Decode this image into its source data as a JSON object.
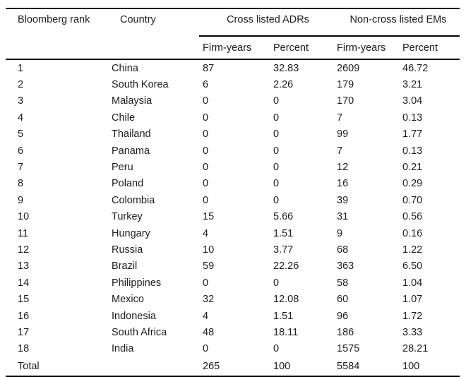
{
  "table": {
    "headers": {
      "rank": "Bloomberg rank",
      "country": "Country",
      "adr_group": "Cross listed ADRs",
      "em_group": "Non-cross listed EMs",
      "adr_firm_years": "Firm-years",
      "adr_percent": "Percent",
      "em_firm_years": "Firm-years",
      "em_percent": "Percent"
    },
    "rows": [
      [
        "1",
        "China",
        "87",
        "32.83",
        "2609",
        "46.72"
      ],
      [
        "2",
        "South Korea",
        "6",
        "2.26",
        "179",
        "3.21"
      ],
      [
        "3",
        "Malaysia",
        "0",
        "0",
        "170",
        "3.04"
      ],
      [
        "4",
        "Chile",
        "0",
        "0",
        "7",
        "0.13"
      ],
      [
        "5",
        "Thailand",
        "0",
        "0",
        "99",
        "1.77"
      ],
      [
        "6",
        "Panama",
        "0",
        "0",
        "7",
        "0.13"
      ],
      [
        "7",
        "Peru",
        "0",
        "0",
        "12",
        "0.21"
      ],
      [
        "8",
        "Poland",
        "0",
        "0",
        "16",
        "0.29"
      ],
      [
        "9",
        "Colombia",
        "0",
        "0",
        "39",
        "0.70"
      ],
      [
        "10",
        "Turkey",
        "15",
        "5.66",
        "31",
        "0.56"
      ],
      [
        "11",
        "Hungary",
        "4",
        "1.51",
        "9",
        "0.16"
      ],
      [
        "12",
        "Russia",
        "10",
        "3.77",
        "68",
        "1.22"
      ],
      [
        "13",
        "Brazil",
        "59",
        "22.26",
        "363",
        "6.50"
      ],
      [
        "14",
        "Philippines",
        "0",
        "0",
        "58",
        "1.04"
      ],
      [
        "15",
        "Mexico",
        "32",
        "12.08",
        "60",
        "1.07"
      ],
      [
        "16",
        "Indonesia",
        "4",
        "1.51",
        "96",
        "1.72"
      ],
      [
        "17",
        "South Africa",
        "48",
        "18.11",
        "186",
        "3.33"
      ],
      [
        "18",
        "India",
        "0",
        "0",
        "1575",
        "28.21"
      ]
    ],
    "total_row": [
      "Total",
      "",
      "265",
      "100",
      "5584",
      "100"
    ]
  }
}
